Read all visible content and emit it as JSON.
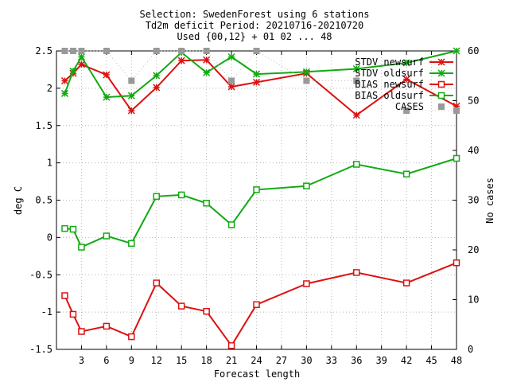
{
  "chart_data": {
    "type": "line",
    "title_lines": [
      "Selection: SwedenForest using     6 stations",
      "Td2m deficit   Period: 20210716-20210720",
      "Used {00,12} + 01 02 ... 48"
    ],
    "xlabel": "Forecast length",
    "ylabel": "deg C",
    "y2label": "No cases",
    "xlim": [
      0,
      48
    ],
    "ylim": [
      -1.5,
      2.5
    ],
    "y2lim": [
      0,
      60
    ],
    "x_ticks": [
      3,
      6,
      9,
      12,
      15,
      18,
      21,
      24,
      27,
      30,
      33,
      36,
      39,
      42,
      45,
      48
    ],
    "y_ticks": [
      -1.5,
      -1,
      -0.5,
      0,
      0.5,
      1,
      1.5,
      2,
      2.5
    ],
    "y_tick_labels": [
      "-1.5",
      "-1",
      "-0.5",
      "0",
      "0.5",
      "1",
      "1.5",
      "2",
      "2.5"
    ],
    "y2_ticks": [
      0,
      10,
      20,
      30,
      40,
      50,
      60
    ],
    "grid": true,
    "legend_position": "top-right",
    "x": [
      1,
      2,
      3,
      6,
      9,
      12,
      15,
      18,
      21,
      24,
      30,
      36,
      42,
      48
    ],
    "series": [
      {
        "name": "STDV newsurf",
        "axis": "y",
        "color": "#dd1111",
        "marker": "star",
        "values": [
          2.1,
          2.2,
          2.32,
          2.18,
          1.7,
          2.01,
          2.37,
          2.38,
          2.02,
          2.08,
          2.2,
          1.64,
          2.12,
          1.76
        ]
      },
      {
        "name": "STDV oldsurf",
        "axis": "y",
        "color": "#11aa11",
        "marker": "star",
        "values": [
          1.93,
          2.23,
          2.42,
          1.88,
          1.9,
          2.17,
          2.48,
          2.21,
          2.42,
          2.19,
          2.22,
          2.26,
          2.34,
          2.5
        ]
      },
      {
        "name": "BIAS newsurf",
        "axis": "y",
        "color": "#dd1111",
        "marker": "square",
        "values": [
          -0.78,
          -1.03,
          -1.26,
          -1.19,
          -1.33,
          -0.61,
          -0.92,
          -0.99,
          -1.45,
          -0.9,
          -0.62,
          -0.47,
          -0.61,
          -0.34
        ]
      },
      {
        "name": "BIAS oldsurf",
        "axis": "y",
        "color": "#11aa11",
        "marker": "square",
        "values": [
          0.12,
          0.11,
          -0.13,
          0.02,
          -0.08,
          0.55,
          0.57,
          0.46,
          0.17,
          0.64,
          0.69,
          0.98,
          0.85,
          1.06
        ]
      },
      {
        "name": "CASES",
        "axis": "y2",
        "color": "#999999",
        "marker": "filled-square",
        "values": [
          60,
          60,
          60,
          60,
          54,
          60,
          60,
          60,
          54,
          60,
          54,
          54,
          48,
          48
        ]
      }
    ]
  }
}
